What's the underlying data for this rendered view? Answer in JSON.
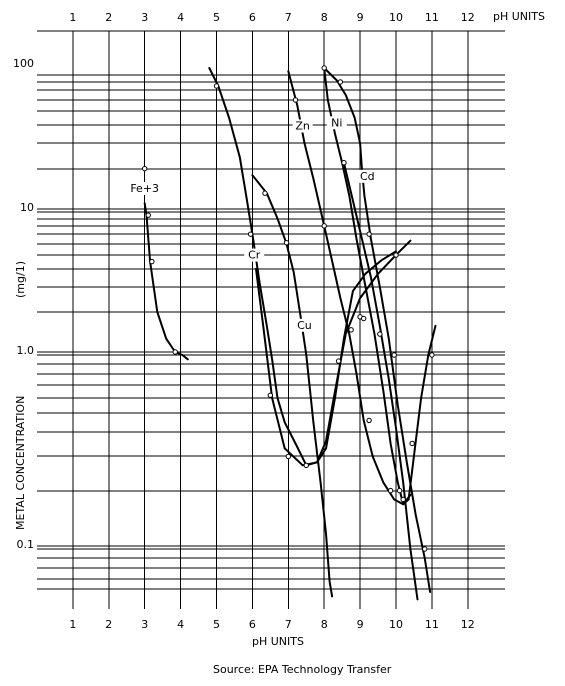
{
  "chart_data": {
    "type": "line",
    "xlabel_top": "pH UNITS",
    "xlabel_bottom": "pH UNITS",
    "ylabel": "METAL CONCENTRATION",
    "ylabel_unit": "(mg/1)",
    "y_scale": "log",
    "xlim": [
      0,
      13
    ],
    "ylim": [
      0.05,
      110
    ],
    "x_ticks": [
      "1",
      "2",
      "3",
      "4",
      "5",
      "6",
      "7",
      "8",
      "9",
      "10",
      "11",
      "12"
    ],
    "y_ticks": [
      "100",
      "10",
      "1.0",
      "0.1"
    ],
    "y_tick_values": [
      100,
      10,
      1,
      0.1
    ],
    "grid": true,
    "source": "Source: EPA Technology Transfer",
    "series": [
      {
        "name": "Fe+3",
        "label_at": [
          3.0,
          14
        ],
        "points": [
          [
            3.0,
            11.5
          ],
          [
            3.05,
            9.5
          ],
          [
            3.15,
            4.5
          ],
          [
            3.35,
            2.0
          ],
          [
            3.6,
            1.3
          ],
          [
            3.85,
            1.05
          ],
          [
            4.05,
            1.0
          ],
          [
            4.2,
            0.95
          ]
        ],
        "markers": [
          [
            3.0,
            20
          ],
          [
            3.1,
            9.5
          ],
          [
            3.2,
            4.5
          ],
          [
            3.85,
            1.05
          ]
        ]
      },
      {
        "name": "Cr",
        "label_at": [
          6.05,
          4.8
        ],
        "points": [
          [
            6.1,
            4.0
          ],
          [
            6.3,
            1.6
          ],
          [
            6.55,
            0.6
          ],
          [
            6.9,
            0.33
          ],
          [
            7.4,
            0.27
          ],
          [
            7.8,
            0.28
          ],
          [
            8.05,
            0.36
          ],
          [
            8.3,
            0.65
          ],
          [
            8.6,
            1.4
          ],
          [
            9.0,
            2.5
          ],
          [
            9.5,
            3.7
          ],
          [
            10.0,
            5.0
          ],
          [
            10.4,
            6.3
          ]
        ],
        "markers": [
          [
            6.5,
            0.62
          ],
          [
            7.0,
            0.3
          ],
          [
            7.5,
            0.27
          ],
          [
            8.4,
            0.93
          ],
          [
            9.0,
            1.85
          ],
          [
            10.0,
            5.0
          ]
        ]
      },
      {
        "name": "Cu",
        "label_at": [
          7.45,
          1.55
        ],
        "points": [
          [
            6.0,
            18
          ],
          [
            6.4,
            13.5
          ],
          [
            6.7,
            9
          ],
          [
            6.95,
            6
          ],
          [
            7.15,
            3.8
          ],
          [
            7.35,
            1.8
          ],
          [
            7.5,
            1.0
          ],
          [
            7.7,
            0.45
          ],
          [
            7.9,
            0.22
          ],
          [
            8.05,
            0.12
          ],
          [
            8.15,
            0.068
          ],
          [
            8.22,
            0.057
          ]
        ],
        "markers": [
          [
            6.35,
            13.5
          ],
          [
            6.95,
            6.1
          ],
          [
            7.4,
            1.65
          ]
        ]
      },
      {
        "name": "Zn",
        "label_at": [
          7.4,
          38
        ],
        "points": [
          [
            4.8,
            100
          ],
          [
            5.05,
            75
          ],
          [
            5.35,
            45
          ],
          [
            5.65,
            24
          ],
          [
            5.85,
            12
          ],
          [
            6.0,
            7.0
          ],
          [
            6.2,
            3.2
          ],
          [
            6.4,
            1.6
          ],
          [
            6.55,
            0.95
          ],
          [
            6.7,
            0.6
          ],
          [
            6.9,
            0.45
          ],
          [
            7.2,
            0.35
          ],
          [
            7.5,
            0.27
          ],
          [
            7.8,
            0.28
          ],
          [
            8.05,
            0.33
          ],
          [
            8.3,
            0.6
          ],
          [
            8.55,
            1.3
          ],
          [
            8.8,
            2.8
          ],
          [
            9.15,
            3.7
          ],
          [
            9.6,
            4.6
          ],
          [
            10.0,
            5.3
          ]
        ],
        "markers": [
          [
            5.0,
            75
          ],
          [
            5.95,
            7.0
          ]
        ]
      },
      {
        "name": "Ni",
        "label_at": [
          8.35,
          40
        ],
        "points": [
          [
            7.0,
            95
          ],
          [
            7.25,
            55
          ],
          [
            7.45,
            30
          ],
          [
            7.7,
            17
          ],
          [
            8.0,
            8.0
          ],
          [
            8.25,
            4.2
          ],
          [
            8.45,
            2.5
          ],
          [
            8.7,
            1.4
          ],
          [
            8.9,
            0.8
          ],
          [
            9.1,
            0.46
          ],
          [
            9.35,
            0.3
          ],
          [
            9.65,
            0.22
          ],
          [
            9.95,
            0.18
          ],
          [
            10.2,
            0.17
          ],
          [
            10.4,
            0.19
          ]
        ],
        "markers": [
          [
            7.2,
            60
          ],
          [
            8.0,
            8.0
          ],
          [
            8.75,
            1.5
          ],
          [
            9.25,
            0.46
          ],
          [
            9.85,
            0.2
          ],
          [
            10.2,
            0.18
          ]
        ]
      },
      {
        "name": "Cd",
        "label_at": [
          9.2,
          17
        ],
        "points": [
          [
            8.0,
            100
          ],
          [
            8.35,
            82
          ],
          [
            8.6,
            65
          ],
          [
            8.85,
            45
          ],
          [
            9.0,
            30
          ],
          [
            9.05,
            20
          ],
          [
            9.12,
            13
          ],
          [
            9.3,
            6.5
          ],
          [
            9.55,
            3.0
          ],
          [
            9.8,
            1.3
          ],
          [
            10.05,
            0.55
          ],
          [
            10.3,
            0.28
          ],
          [
            10.55,
            0.15
          ],
          [
            10.8,
            0.09
          ],
          [
            10.95,
            0.06
          ]
        ],
        "markers": [
          [
            8.0,
            100
          ],
          [
            8.45,
            80
          ],
          [
            9.25,
            7.0
          ],
          [
            9.95,
            1.0
          ],
          [
            10.45,
            0.35
          ],
          [
            10.8,
            0.1
          ]
        ]
      },
      {
        "name": "",
        "points": [
          [
            8.0,
            100
          ],
          [
            8.1,
            60
          ],
          [
            8.3,
            35
          ],
          [
            8.5,
            22
          ],
          [
            8.7,
            13
          ],
          [
            8.9,
            6.5
          ],
          [
            9.15,
            3.0
          ],
          [
            9.4,
            1.4
          ],
          [
            9.65,
            0.65
          ],
          [
            9.85,
            0.35
          ],
          [
            10.05,
            0.22
          ],
          [
            10.2,
            0.17
          ],
          [
            10.35,
            0.18
          ],
          [
            10.5,
            0.3
          ],
          [
            10.7,
            0.6
          ],
          [
            10.9,
            1.0
          ],
          [
            11.1,
            1.6
          ]
        ],
        "markers": [
          [
            8.55,
            22
          ],
          [
            9.1,
            1.8
          ],
          [
            9.55,
            1.4
          ],
          [
            10.1,
            0.2
          ],
          [
            11.0,
            1.0
          ]
        ]
      },
      {
        "name": "",
        "points": [
          [
            8.55,
            22
          ],
          [
            8.8,
            12
          ],
          [
            9.05,
            6.5
          ],
          [
            9.3,
            3.5
          ],
          [
            9.55,
            1.6
          ],
          [
            9.8,
            0.75
          ],
          [
            10.0,
            0.42
          ],
          [
            10.2,
            0.22
          ],
          [
            10.4,
            0.1
          ],
          [
            10.6,
            0.055
          ]
        ],
        "markers": []
      }
    ]
  }
}
